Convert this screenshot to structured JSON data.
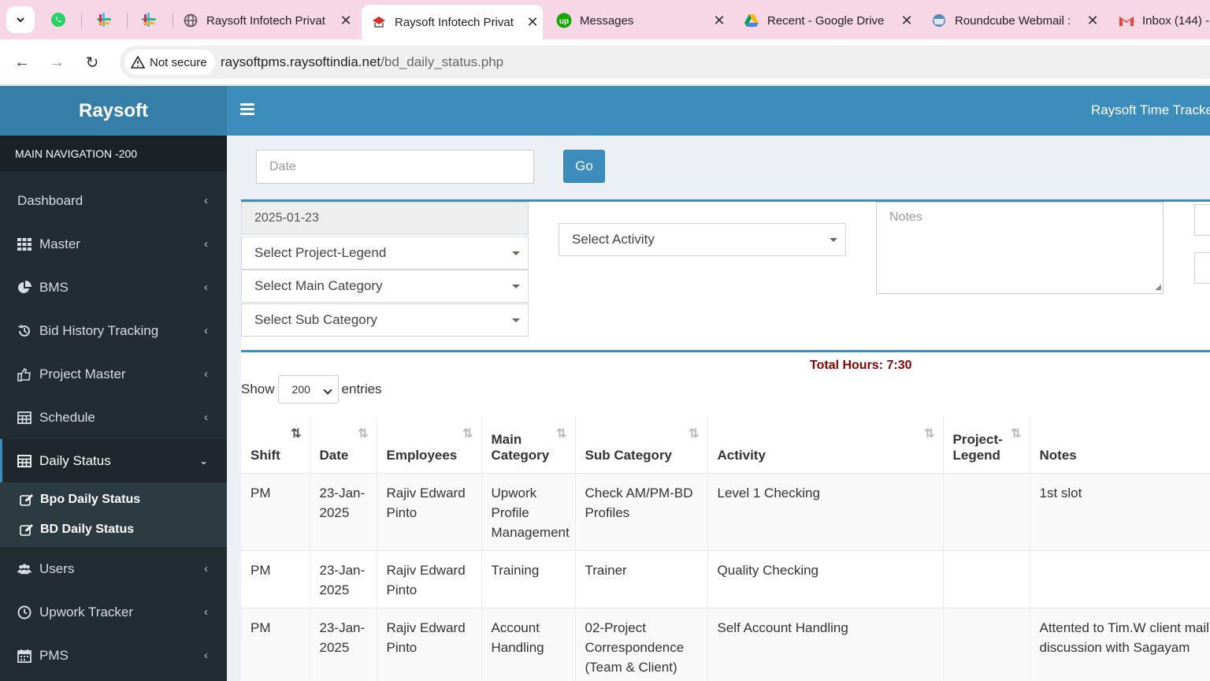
{
  "browser": {
    "tabs": [
      {
        "title": "Raysoft Infotech Privat"
      },
      {
        "title": "Raysoft Infotech Privat"
      },
      {
        "title": "Messages"
      },
      {
        "title": "Recent - Google Drive"
      },
      {
        "title": "Roundcube Webmail :"
      },
      {
        "title": "Inbox (144) -"
      }
    ],
    "security_label": "Not secure",
    "url_host": "raysoftpms.raysoftindia.net",
    "url_path": "/bd_daily_status.php"
  },
  "sidebar": {
    "brand": "Raysoft",
    "nav_header": "MAIN NAVIGATION -200",
    "items": [
      {
        "label": "Dashboard",
        "icon": "dashboard"
      },
      {
        "label": "Master",
        "icon": "grid-icon"
      },
      {
        "label": "BMS",
        "icon": "pie-chart-icon"
      },
      {
        "label": "Bid History Tracking",
        "icon": "history-icon"
      },
      {
        "label": "Project Master",
        "icon": "thumbs-up-icon"
      },
      {
        "label": "Schedule",
        "icon": "table-icon"
      },
      {
        "label": "Daily Status",
        "icon": "table-icon"
      },
      {
        "label": "Users",
        "icon": "users-icon"
      },
      {
        "label": "Upwork Tracker",
        "icon": "clock-icon"
      },
      {
        "label": "PMS",
        "icon": "calendar-icon"
      }
    ],
    "submenu": [
      {
        "label": "Bpo Daily Status"
      },
      {
        "label": "BD Daily Status"
      }
    ]
  },
  "header": {
    "app_title": "Raysoft Time Tracker"
  },
  "filter": {
    "date_placeholder": "Date",
    "go_label": "Go"
  },
  "form": {
    "date_value": "2025-01-23",
    "project_legend": "Select Project-Legend",
    "main_category": "Select Main Category",
    "sub_category": "Select Sub Category",
    "activity": "Select Activity",
    "notes_placeholder": "Notes"
  },
  "summary": {
    "total_hours": "Total Hours: 7:30"
  },
  "table_controls": {
    "show_label": "Show",
    "entries_value": "200",
    "entries_label": "entries"
  },
  "table": {
    "headers": [
      "Shift",
      "Date",
      "Employees",
      "Main Category",
      "Sub Category",
      "Activity",
      "Project-Legend",
      "Notes"
    ],
    "rows": [
      {
        "shift": "PM",
        "date": "23-Jan-2025",
        "employee": "Rajiv Edward Pinto",
        "main_category": "Upwork Profile Management",
        "sub_category": "Check AM/PM-BD Profiles",
        "activity": "Level 1 Checking",
        "project_legend": "",
        "notes": "1st slot"
      },
      {
        "shift": "PM",
        "date": "23-Jan-2025",
        "employee": "Rajiv Edward Pinto",
        "main_category": "Training",
        "sub_category": "Trainer",
        "activity": "Quality Checking",
        "project_legend": "",
        "notes": ""
      },
      {
        "shift": "PM",
        "date": "23-Jan-2025",
        "employee": "Rajiv Edward Pinto",
        "main_category": "Account Handling",
        "sub_category": "02-Project Correspondence (Team & Client)",
        "activity": "Self Account Handling",
        "project_legend": "",
        "notes": "Attented to Tim.W client mail and discussion with Sagayam"
      }
    ]
  }
}
